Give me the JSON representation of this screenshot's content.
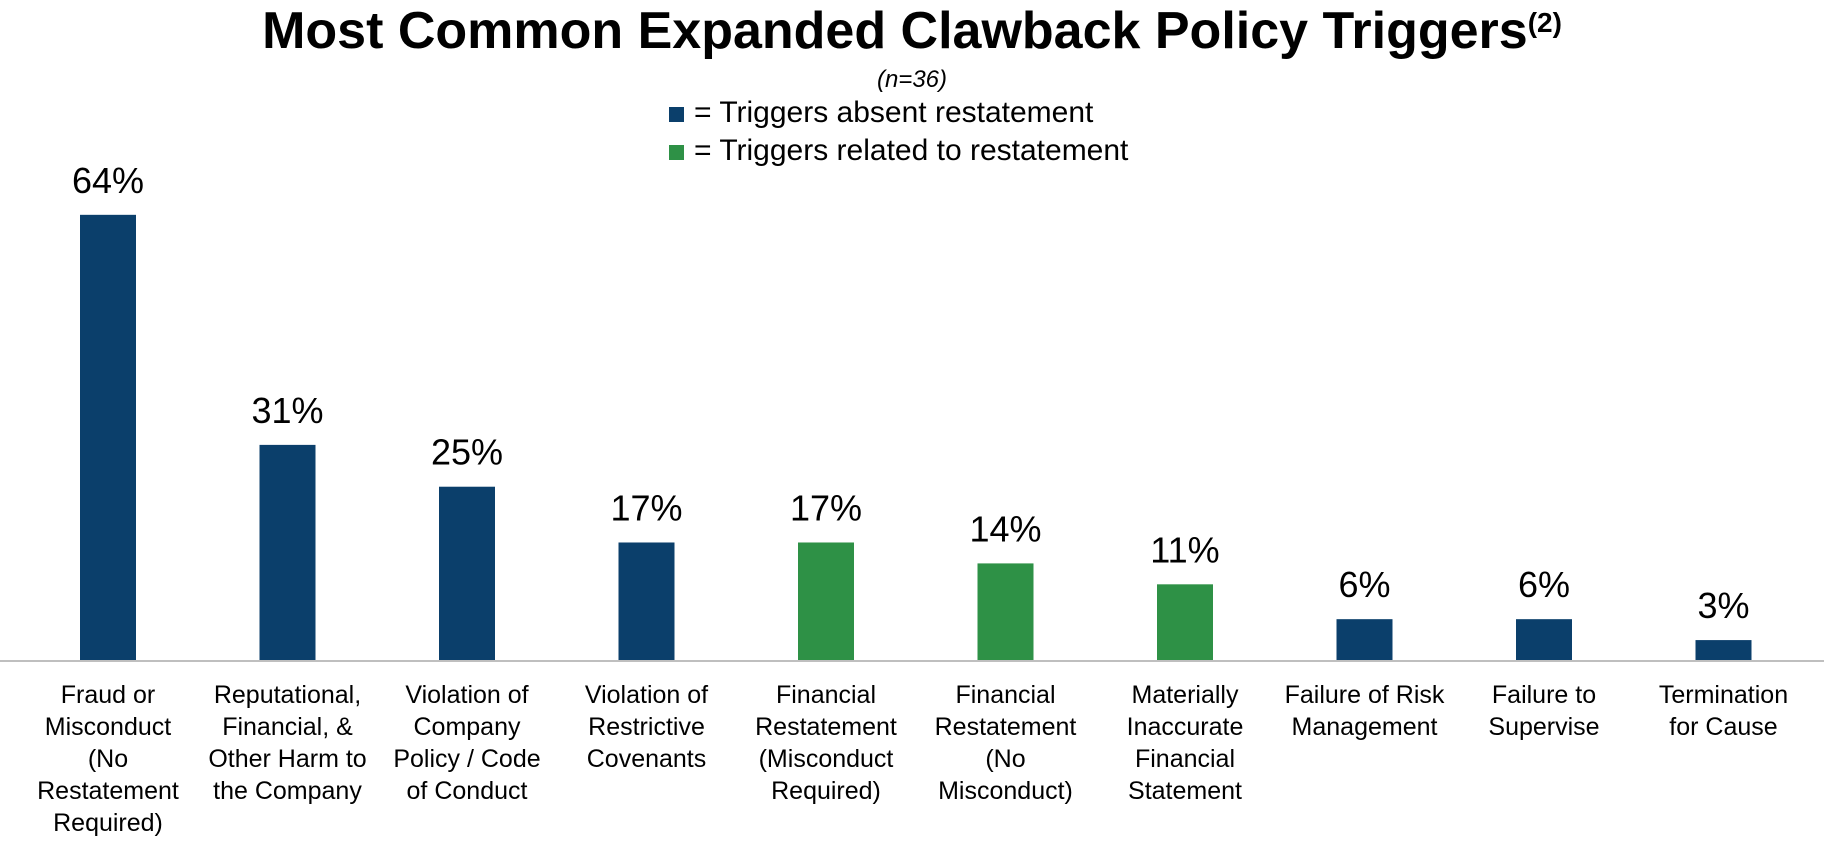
{
  "chart_data": {
    "type": "bar",
    "title": "Most Common Expanded Clawback Policy Triggers",
    "title_superscript": "(2)",
    "subtitle": "(n=36)",
    "xlabel": "",
    "ylabel": "",
    "ylim": [
      0,
      70
    ],
    "grid": false,
    "legend_placement": "top-center",
    "value_suffix": "%",
    "legend": [
      {
        "key": "absent",
        "label": "= Triggers absent restatement",
        "color": "#0b3f6b"
      },
      {
        "key": "related",
        "label": "= Triggers related to restatement",
        "color": "#2e9146"
      }
    ],
    "categories": [
      {
        "label": [
          "Fraud or",
          "Misconduct",
          "(No",
          "Restatement",
          "Required)"
        ],
        "value": 64,
        "group": "absent"
      },
      {
        "label": [
          "Reputational,",
          "Financial, &",
          "Other Harm to",
          "the Company"
        ],
        "value": 31,
        "group": "absent"
      },
      {
        "label": [
          "Violation of",
          "Company",
          "Policy / Code",
          "of Conduct"
        ],
        "value": 25,
        "group": "absent"
      },
      {
        "label": [
          "Violation of",
          "Restrictive",
          "Covenants"
        ],
        "value": 17,
        "group": "absent"
      },
      {
        "label": [
          "Financial",
          "Restatement",
          "(Misconduct",
          "Required)"
        ],
        "value": 17,
        "group": "related"
      },
      {
        "label": [
          "Financial",
          "Restatement",
          "(No",
          "Misconduct)"
        ],
        "value": 14,
        "group": "related"
      },
      {
        "label": [
          "Materially",
          "Inaccurate",
          "Financial",
          "Statement"
        ],
        "value": 11,
        "group": "related"
      },
      {
        "label": [
          "Failure of Risk",
          "Management"
        ],
        "value": 6,
        "group": "absent"
      },
      {
        "label": [
          "Failure to",
          "Supervise"
        ],
        "value": 6,
        "group": "absent"
      },
      {
        "label": [
          "Termination",
          "for Cause"
        ],
        "value": 3,
        "group": "absent"
      }
    ]
  }
}
